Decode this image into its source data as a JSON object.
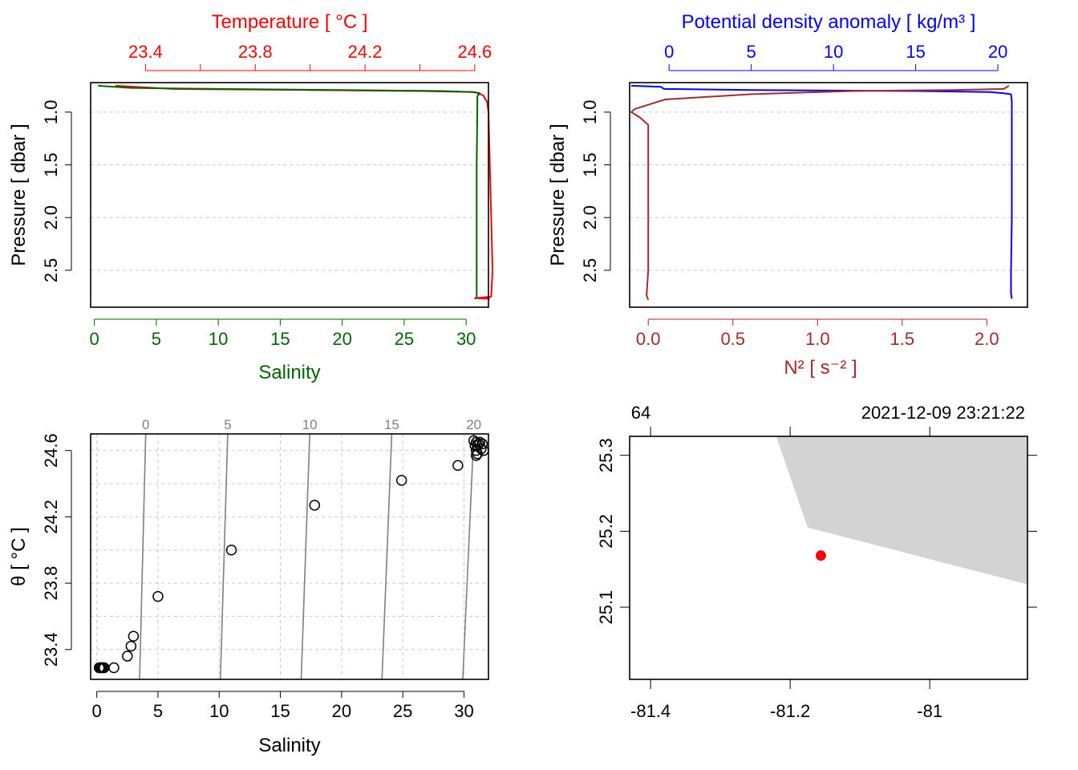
{
  "colors": {
    "temperature": "#ff0000",
    "salinity": "#006400",
    "density": "#0000ff",
    "n2": "#a52a2a",
    "axis": "#000000",
    "grid": "#c8c8c8",
    "isopycnal": "#808080",
    "coast": "#d3d3d3",
    "station": "#ff0000"
  },
  "chart_data": [
    {
      "id": "ts-profile",
      "type": "line",
      "ylabel": "Pressure [ dbar ]",
      "ylim": [
        2.85,
        0.72
      ],
      "yticks": [
        1.0,
        1.5,
        2.0,
        2.5
      ],
      "ytick_labels": [
        "1.0",
        "1.5",
        "2.0",
        "2.5"
      ],
      "top_axis": {
        "label": "Temperature [ °C ]",
        "range": [
          23.2,
          24.65
        ],
        "ticks": [
          23.4,
          23.6,
          23.8,
          24.0,
          24.2,
          24.4,
          24.6
        ],
        "tick_labels": [
          "23.4",
          "",
          "23.8",
          "",
          "24.2",
          "",
          "24.6"
        ]
      },
      "bottom_axis": {
        "label": "Salinity",
        "range": [
          -0.3,
          31.8
        ],
        "ticks": [
          0,
          5,
          10,
          15,
          20,
          25,
          30
        ],
        "tick_labels": [
          "0",
          "5",
          "10",
          "15",
          "20",
          "25",
          "30"
        ]
      },
      "series": [
        {
          "name": "Temperature",
          "axis": "top",
          "values": [
            [
              23.29,
              0.75
            ],
            [
              23.5,
              0.78
            ],
            [
              24.0,
              0.79
            ],
            [
              24.4,
              0.8
            ],
            [
              24.6,
              0.81
            ],
            [
              24.63,
              0.84
            ],
            [
              24.645,
              0.9
            ],
            [
              24.65,
              1.0
            ],
            [
              24.655,
              1.5
            ],
            [
              24.66,
              2.0
            ],
            [
              24.665,
              2.5
            ],
            [
              24.66,
              2.75
            ],
            [
              24.6,
              2.765
            ],
            [
              24.655,
              2.77
            ]
          ]
        },
        {
          "name": "Salinity",
          "axis": "bottom",
          "values": [
            [
              0.3,
              0.75
            ],
            [
              3.0,
              0.77
            ],
            [
              10.0,
              0.78
            ],
            [
              20.0,
              0.79
            ],
            [
              28.0,
              0.8
            ],
            [
              30.5,
              0.81
            ],
            [
              31.1,
              0.82
            ],
            [
              30.9,
              0.85
            ],
            [
              30.9,
              1.0
            ],
            [
              30.85,
              1.5
            ],
            [
              30.85,
              2.0
            ],
            [
              30.85,
              2.5
            ],
            [
              30.85,
              2.77
            ]
          ]
        }
      ]
    },
    {
      "id": "density-n2-profile",
      "type": "line",
      "ylabel": "Pressure [ dbar ]",
      "ylim": [
        2.85,
        0.72
      ],
      "yticks": [
        1.0,
        1.5,
        2.0,
        2.5
      ],
      "ytick_labels": [
        "1.0",
        "1.5",
        "2.0",
        "2.5"
      ],
      "top_axis": {
        "label": "Potential density anomaly [ kg/m³ ]",
        "range": [
          -2.4,
          21.8
        ],
        "ticks": [
          0,
          5,
          10,
          15,
          20
        ],
        "tick_labels": [
          "0",
          "5",
          "10",
          "15",
          "20"
        ]
      },
      "bottom_axis": {
        "label": "N² [ s⁻² ]",
        "range": [
          -0.11,
          2.24
        ],
        "ticks": [
          0,
          0.5,
          1.0,
          1.5,
          2.0
        ],
        "tick_labels": [
          "0.0",
          "0.5",
          "1.0",
          "1.5",
          "2.0"
        ]
      },
      "series": [
        {
          "name": "Potential density anomaly",
          "axis": "top",
          "values": [
            [
              -2.3,
              0.75
            ],
            [
              -0.5,
              0.76
            ],
            [
              -0.3,
              0.78
            ],
            [
              5.0,
              0.79
            ],
            [
              15.0,
              0.8
            ],
            [
              19.5,
              0.81
            ],
            [
              20.3,
              0.82
            ],
            [
              20.8,
              0.83
            ],
            [
              20.85,
              0.9
            ],
            [
              20.85,
              1.5
            ],
            [
              20.85,
              2.0
            ],
            [
              20.8,
              2.5
            ],
            [
              20.8,
              2.72
            ],
            [
              20.85,
              2.77
            ]
          ]
        },
        {
          "name": "N2",
          "axis": "bottom",
          "values": [
            [
              2.13,
              0.75
            ],
            [
              2.1,
              0.78
            ],
            [
              1.8,
              0.79
            ],
            [
              1.2,
              0.8
            ],
            [
              0.6,
              0.83
            ],
            [
              0.1,
              0.88
            ],
            [
              -0.08,
              0.97
            ],
            [
              -0.1,
              1.0
            ],
            [
              -0.05,
              1.05
            ],
            [
              0.0,
              1.12
            ],
            [
              0.0,
              1.5
            ],
            [
              0.0,
              2.0
            ],
            [
              0.0,
              2.5
            ],
            [
              -0.01,
              2.74
            ],
            [
              0.0,
              2.78
            ]
          ]
        }
      ]
    },
    {
      "id": "ts-diagram",
      "type": "scatter",
      "xlabel": "Salinity",
      "ylabel": "θ [ °C ]",
      "xlim": [
        -0.5,
        32
      ],
      "ylim": [
        23.22,
        24.7
      ],
      "xticks": [
        0,
        5,
        10,
        15,
        20,
        25,
        30
      ],
      "xtick_labels": [
        "0",
        "5",
        "10",
        "15",
        "20",
        "25",
        "30"
      ],
      "yticks": [
        23.4,
        23.8,
        24.2,
        24.6
      ],
      "ytick_labels": [
        "23.4",
        "23.8",
        "24.2",
        "24.6"
      ],
      "grid": true,
      "isopycnals": [
        {
          "label": "0",
          "s_bottom": 3.5,
          "s_top": 4.0
        },
        {
          "label": "5",
          "s_bottom": 10.1,
          "s_top": 10.7
        },
        {
          "label": "10",
          "s_bottom": 16.7,
          "s_top": 17.4
        },
        {
          "label": "15",
          "s_bottom": 23.3,
          "s_top": 24.1
        },
        {
          "label": "20",
          "s_bottom": 29.9,
          "s_top": 30.8
        }
      ],
      "points": [
        [
          0.2,
          23.29
        ],
        [
          0.3,
          23.29
        ],
        [
          0.4,
          23.29
        ],
        [
          0.5,
          23.29
        ],
        [
          0.6,
          23.29
        ],
        [
          1.4,
          23.29
        ],
        [
          2.5,
          23.36
        ],
        [
          2.8,
          23.42
        ],
        [
          3.0,
          23.48
        ],
        [
          5.0,
          23.72
        ],
        [
          11.0,
          24.0
        ],
        [
          17.8,
          24.27
        ],
        [
          24.9,
          24.42
        ],
        [
          29.5,
          24.51
        ],
        [
          30.8,
          24.66
        ],
        [
          31.0,
          24.65
        ],
        [
          31.2,
          24.64
        ],
        [
          31.1,
          24.63
        ],
        [
          30.9,
          24.63
        ],
        [
          31.4,
          24.61
        ],
        [
          31.6,
          24.6
        ],
        [
          31.0,
          24.6
        ],
        [
          31.1,
          24.58
        ],
        [
          31.0,
          24.57
        ],
        [
          31.3,
          24.65
        ],
        [
          31.5,
          24.64
        ]
      ]
    },
    {
      "id": "station-map",
      "type": "map",
      "station_label": "64",
      "timestamp": "2021-12-09 23:21:22",
      "xlim": [
        -81.43,
        -80.86
      ],
      "ylim": [
        25.005,
        25.325
      ],
      "xticks": [
        -81.4,
        -81.2,
        -81.0
      ],
      "xtick_labels": [
        "-81.4",
        "-81.2",
        "-81"
      ],
      "yticks": [
        25.1,
        25.2,
        25.3
      ],
      "ytick_labels": [
        "25.1",
        "25.2",
        "25.3"
      ],
      "land_polygon": [
        [
          -81.22,
          25.325
        ],
        [
          -81.175,
          25.205
        ],
        [
          -80.86,
          25.13
        ],
        [
          -80.86,
          25.325
        ]
      ],
      "station": {
        "lon": -81.156,
        "lat": 25.168
      }
    }
  ]
}
